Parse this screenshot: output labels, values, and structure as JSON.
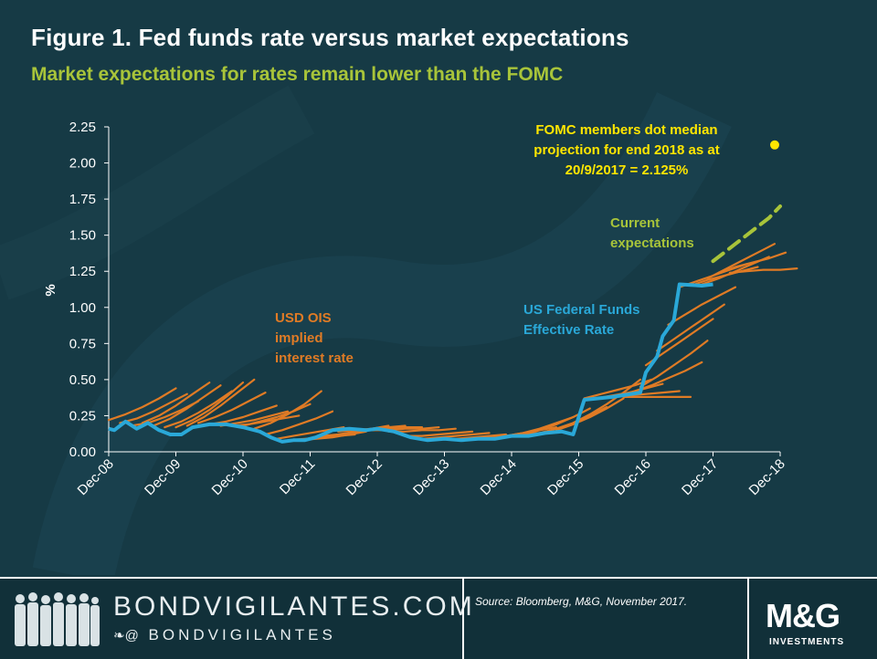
{
  "header": {
    "title": "Figure 1. Fed funds rate versus market expectations",
    "subtitle": "Market expectations for rates remain lower than the FOMC"
  },
  "chart_data": {
    "type": "line",
    "ylabel": "%",
    "xlabel": "",
    "ylim": [
      0,
      2.25
    ],
    "yticks": [
      "0.00",
      "0.25",
      "0.50",
      "0.75",
      "1.00",
      "1.25",
      "1.50",
      "1.75",
      "2.00",
      "2.25"
    ],
    "xticks": [
      "Dec-08",
      "Dec-09",
      "Dec-10",
      "Dec-11",
      "Dec-12",
      "Dec-13",
      "Dec-14",
      "Dec-15",
      "Dec-16",
      "Dec-17",
      "Dec-18"
    ],
    "xlim": [
      "2008-12",
      "2018-12"
    ],
    "grid": false,
    "colors": {
      "fed_funds": "#2aa8d8",
      "ois": "#e07b25",
      "current": "#a8c43a",
      "fomc": "#ffe600",
      "axis": "#ffffff"
    },
    "series": [
      {
        "name": "US Federal Funds Effective Rate",
        "x": [
          "2008-12",
          "2009-01",
          "2009-03",
          "2009-05",
          "2009-07",
          "2009-09",
          "2009-11",
          "2010-01",
          "2010-03",
          "2010-06",
          "2010-09",
          "2010-12",
          "2011-03",
          "2011-05",
          "2011-07",
          "2011-09",
          "2011-11",
          "2012-01",
          "2012-04",
          "2012-07",
          "2012-10",
          "2012-12",
          "2013-03",
          "2013-06",
          "2013-09",
          "2013-12",
          "2014-03",
          "2014-06",
          "2014-09",
          "2014-12",
          "2015-03",
          "2015-06",
          "2015-09",
          "2015-11",
          "2015-12",
          "2016-01",
          "2016-06",
          "2016-11",
          "2016-12",
          "2017-02",
          "2017-03",
          "2017-05",
          "2017-06",
          "2017-10",
          "2017-12"
        ],
        "values": [
          0.16,
          0.15,
          0.21,
          0.16,
          0.2,
          0.15,
          0.12,
          0.12,
          0.17,
          0.19,
          0.19,
          0.17,
          0.14,
          0.1,
          0.07,
          0.08,
          0.08,
          0.1,
          0.15,
          0.16,
          0.15,
          0.16,
          0.14,
          0.1,
          0.08,
          0.09,
          0.08,
          0.09,
          0.09,
          0.11,
          0.11,
          0.13,
          0.14,
          0.12,
          0.24,
          0.36,
          0.38,
          0.41,
          0.55,
          0.66,
          0.8,
          0.91,
          1.16,
          1.15,
          1.16
        ]
      },
      {
        "name": "Current expectations",
        "x": [
          "2017-12",
          "2018-02",
          "2018-04",
          "2018-06",
          "2018-08",
          "2018-10",
          "2018-12"
        ],
        "values": [
          1.32,
          1.38,
          1.44,
          1.5,
          1.56,
          1.62,
          1.7
        ]
      }
    ],
    "ois_curves": [
      {
        "start": "2008-12",
        "values": [
          0.22,
          0.26,
          0.31,
          0.37,
          0.44
        ]
      },
      {
        "start": "2009-02",
        "values": [
          0.2,
          0.23,
          0.28,
          0.34,
          0.4
        ]
      },
      {
        "start": "2009-04",
        "values": [
          0.18,
          0.2,
          0.24,
          0.29,
          0.35
        ]
      },
      {
        "start": "2009-06",
        "values": [
          0.2,
          0.25,
          0.32,
          0.4,
          0.48
        ]
      },
      {
        "start": "2009-08",
        "values": [
          0.18,
          0.23,
          0.3,
          0.38,
          0.46
        ]
      },
      {
        "start": "2009-10",
        "values": [
          0.17,
          0.21,
          0.27,
          0.34,
          0.42
        ]
      },
      {
        "start": "2009-12",
        "values": [
          0.17,
          0.22,
          0.29,
          0.38,
          0.48
        ]
      },
      {
        "start": "2010-02",
        "values": [
          0.18,
          0.24,
          0.32,
          0.41,
          0.5
        ]
      },
      {
        "start": "2010-04",
        "values": [
          0.2,
          0.24,
          0.29,
          0.35,
          0.41
        ]
      },
      {
        "start": "2010-06",
        "values": [
          0.19,
          0.21,
          0.24,
          0.28,
          0.32
        ]
      },
      {
        "start": "2010-08",
        "values": [
          0.18,
          0.2,
          0.22,
          0.25,
          0.28
        ]
      },
      {
        "start": "2010-10",
        "values": [
          0.18,
          0.19,
          0.21,
          0.23,
          0.25
        ]
      },
      {
        "start": "2010-12",
        "values": [
          0.18,
          0.21,
          0.24,
          0.28,
          0.33
        ]
      },
      {
        "start": "2011-02",
        "values": [
          0.16,
          0.2,
          0.26,
          0.33,
          0.42
        ]
      },
      {
        "start": "2011-04",
        "values": [
          0.12,
          0.15,
          0.19,
          0.23,
          0.28
        ]
      },
      {
        "start": "2011-06",
        "values": [
          0.09,
          0.11,
          0.13,
          0.15,
          0.17
        ]
      },
      {
        "start": "2011-08",
        "values": [
          0.08,
          0.09,
          0.1,
          0.11,
          0.12
        ]
      },
      {
        "start": "2011-10",
        "values": [
          0.08,
          0.09,
          0.1,
          0.12,
          0.14
        ]
      },
      {
        "start": "2011-12",
        "values": [
          0.09,
          0.1,
          0.12,
          0.14,
          0.16
        ]
      },
      {
        "start": "2012-02",
        "values": [
          0.11,
          0.12,
          0.14,
          0.16,
          0.18
        ]
      },
      {
        "start": "2012-05",
        "values": [
          0.14,
          0.15,
          0.16,
          0.17,
          0.18
        ]
      },
      {
        "start": "2012-08",
        "values": [
          0.15,
          0.15,
          0.16,
          0.17,
          0.17
        ]
      },
      {
        "start": "2012-11",
        "values": [
          0.15,
          0.15,
          0.16,
          0.16,
          0.17
        ]
      },
      {
        "start": "2013-02",
        "values": [
          0.14,
          0.14,
          0.15,
          0.15,
          0.16
        ]
      },
      {
        "start": "2013-05",
        "values": [
          0.11,
          0.11,
          0.12,
          0.13,
          0.14
        ]
      },
      {
        "start": "2013-08",
        "values": [
          0.09,
          0.1,
          0.11,
          0.12,
          0.13
        ]
      },
      {
        "start": "2013-11",
        "values": [
          0.09,
          0.09,
          0.1,
          0.11,
          0.12
        ]
      },
      {
        "start": "2014-02",
        "values": [
          0.08,
          0.09,
          0.1,
          0.11,
          0.12
        ]
      },
      {
        "start": "2014-05",
        "values": [
          0.09,
          0.1,
          0.11,
          0.12,
          0.13
        ]
      },
      {
        "start": "2014-08",
        "values": [
          0.1,
          0.11,
          0.13,
          0.15,
          0.17
        ]
      },
      {
        "start": "2014-11",
        "values": [
          0.11,
          0.13,
          0.16,
          0.2,
          0.24
        ]
      },
      {
        "start": "2015-02",
        "values": [
          0.12,
          0.15,
          0.19,
          0.24,
          0.3
        ]
      },
      {
        "start": "2015-05",
        "values": [
          0.13,
          0.16,
          0.2,
          0.25,
          0.31
        ]
      },
      {
        "start": "2015-08",
        "values": [
          0.15,
          0.19,
          0.24,
          0.3,
          0.37
        ]
      },
      {
        "start": "2015-11",
        "values": [
          0.2,
          0.26,
          0.33,
          0.41,
          0.5
        ]
      },
      {
        "start": "2016-01",
        "values": [
          0.37,
          0.4,
          0.43,
          0.46,
          0.5
        ]
      },
      {
        "start": "2016-03",
        "values": [
          0.37,
          0.39,
          0.41,
          0.44,
          0.47
        ]
      },
      {
        "start": "2016-06",
        "values": [
          0.38,
          0.39,
          0.4,
          0.41,
          0.42
        ]
      },
      {
        "start": "2016-08",
        "values": [
          0.38,
          0.38,
          0.38,
          0.38,
          0.38
        ]
      },
      {
        "start": "2016-10",
        "values": [
          0.42,
          0.46,
          0.51,
          0.56,
          0.62
        ]
      },
      {
        "start": "2016-11",
        "values": [
          0.45,
          0.52,
          0.6,
          0.68,
          0.77
        ]
      },
      {
        "start": "2016-12",
        "values": [
          0.6,
          0.68,
          0.76,
          0.84,
          0.92
        ]
      },
      {
        "start": "2017-02",
        "values": [
          0.7,
          0.78,
          0.86,
          0.94,
          1.02
        ]
      },
      {
        "start": "2017-04",
        "values": [
          0.88,
          0.95,
          1.02,
          1.08,
          1.14
        ]
      },
      {
        "start": "2017-06",
        "values": [
          1.14,
          1.18,
          1.22,
          1.26,
          1.3
        ]
      },
      {
        "start": "2017-08",
        "values": [
          1.15,
          1.19,
          1.22,
          1.25,
          1.28
        ]
      },
      {
        "start": "2017-10",
        "values": [
          1.16,
          1.2,
          1.25,
          1.3,
          1.35
        ]
      },
      {
        "start": "2017-11",
        "values": [
          1.2,
          1.26,
          1.32,
          1.38,
          1.44
        ]
      },
      {
        "start": "2018-01",
        "values": [
          1.24,
          1.28,
          1.31,
          1.34,
          1.38
        ]
      },
      {
        "start": "2018-03",
        "values": [
          1.24,
          1.25,
          1.26,
          1.26,
          1.27
        ]
      }
    ],
    "points": [
      {
        "name": "FOMC median projection end 2018",
        "x": "2018-12",
        "y": 2.125
      }
    ],
    "annotations": {
      "ois": [
        "USD OIS",
        "implied",
        "interest rate"
      ],
      "fed": [
        "US Federal Funds",
        "Effective Rate"
      ],
      "current": [
        "Current",
        "expectations"
      ],
      "fomc": [
        "FOMC members dot  median",
        "projection for end 2018 as at",
        "20/9/2017 = 2.125%"
      ]
    }
  },
  "footer": {
    "site": "BONDVIGILANTES.COM",
    "handle_prefix": "❧@",
    "handle": "BONDVIGILANTES",
    "source": "Source: Bloomberg, M&G, November 2017.",
    "logo": "M&G",
    "logo_sub": "INVESTMENTS"
  }
}
